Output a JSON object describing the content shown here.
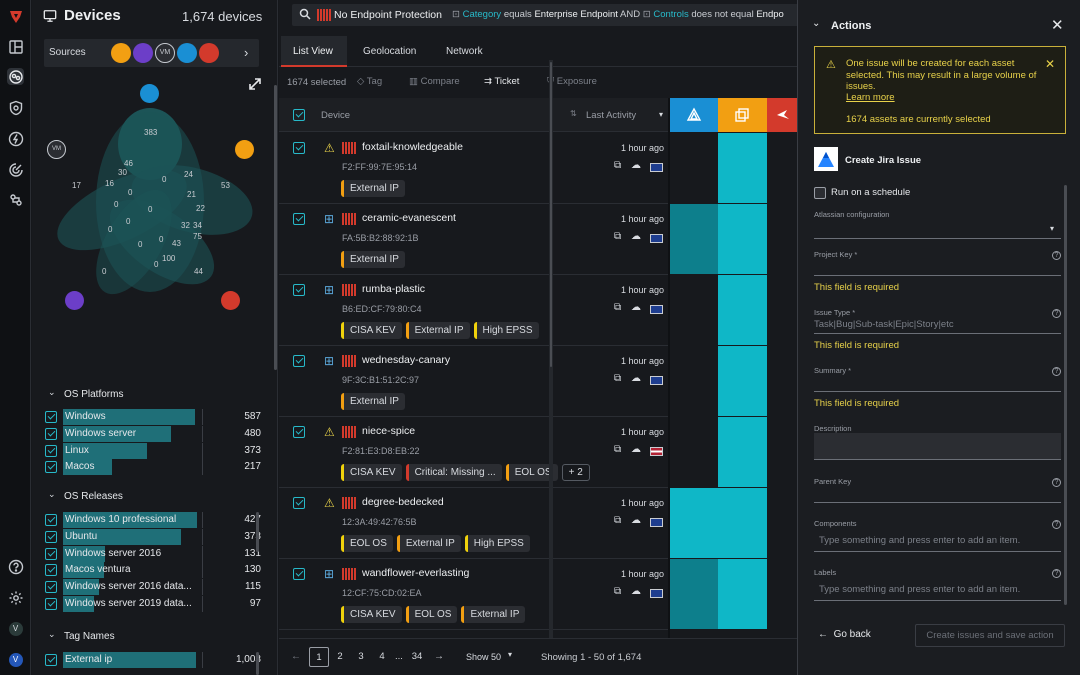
{
  "header": {
    "title": "Devices",
    "device_count": "1,674 devices"
  },
  "search": {
    "query_part1": "No Endpoint Protection",
    "field1": "Category",
    "op1": "equals",
    "val1": "Enterprise Endpoint",
    "and": "AND",
    "field2": "Controls",
    "op2": "does not equal",
    "val2": "Endpo"
  },
  "sources": {
    "label": "Sources"
  },
  "venn": {
    "labels": [
      "383",
      "46",
      "30",
      "24",
      "17",
      "16",
      "53",
      "21",
      "22",
      "32",
      "34",
      "75",
      "43",
      "100",
      "44",
      "0",
      "0",
      "0",
      "0",
      "0",
      "0",
      "0",
      "0",
      "0",
      "0"
    ]
  },
  "os_platforms": {
    "title": "OS Platforms",
    "items": [
      {
        "label": "Windows",
        "count": "587",
        "frac": 0.94
      },
      {
        "label": "Windows server",
        "count": "480",
        "frac": 0.77
      },
      {
        "label": "Linux",
        "count": "373",
        "frac": 0.6
      },
      {
        "label": "Macos",
        "count": "217",
        "frac": 0.35
      }
    ]
  },
  "os_releases": {
    "title": "OS Releases",
    "items": [
      {
        "label": "Windows 10 professional",
        "count": "427",
        "frac": 0.96
      },
      {
        "label": "Ubuntu",
        "count": "373",
        "frac": 0.84
      },
      {
        "label": "Windows server 2016",
        "count": "131",
        "frac": 0.3
      },
      {
        "label": "Macos ventura",
        "count": "130",
        "frac": 0.29
      },
      {
        "label": "Windows server 2016 data...",
        "count": "115",
        "frac": 0.26
      },
      {
        "label": "Windows server 2019 data...",
        "count": "97",
        "frac": 0.22
      }
    ]
  },
  "tag_names": {
    "title": "Tag Names",
    "items": [
      {
        "label": "External ip",
        "count": "1,003",
        "frac": 0.95
      }
    ]
  },
  "tabs": [
    "List View",
    "Geolocation",
    "Network"
  ],
  "toolbar": {
    "selected": "1674 selected",
    "tag": "Tag",
    "compare": "Compare",
    "ticket": "Ticket",
    "exposure": "Exposure"
  },
  "table": {
    "col_device": "Device",
    "col_activity": "Last Activity"
  },
  "devices": [
    {
      "name": "foxtail-knowledgeable",
      "mac": "F2:FF:99:7E:95:14",
      "activity": "1 hour ago",
      "os": "linux",
      "flag": "uk",
      "tags": [
        {
          "t": "External IP",
          "c": "o"
        }
      ],
      "cells": [
        0,
        1
      ]
    },
    {
      "name": "ceramic-evanescent",
      "mac": "FA:5B:B2:88:92:1B",
      "activity": "1 hour ago",
      "os": "windows",
      "flag": "uk",
      "tags": [
        {
          "t": "External IP",
          "c": "o"
        }
      ],
      "cells": [
        2,
        1
      ]
    },
    {
      "name": "rumba-plastic",
      "mac": "B6:ED:CF:79:80:C4",
      "activity": "1 hour ago",
      "os": "windows",
      "flag": "uk",
      "tags": [
        {
          "t": "CISA KEV",
          "c": "y"
        },
        {
          "t": "External IP",
          "c": "o"
        },
        {
          "t": "High EPSS",
          "c": "y"
        }
      ],
      "cells": [
        0,
        1
      ]
    },
    {
      "name": "wednesday-canary",
      "mac": "9F:3C:B1:51:2C:97",
      "activity": "1 hour ago",
      "os": "windows",
      "flag": "uk",
      "tags": [
        {
          "t": "External IP",
          "c": "o"
        }
      ],
      "cells": [
        0,
        1
      ]
    },
    {
      "name": "niece-spice",
      "mac": "F2:81:E3:D8:EB:22",
      "activity": "1 hour ago",
      "os": "linux",
      "flag": "us",
      "tags": [
        {
          "t": "CISA KEV",
          "c": "y"
        },
        {
          "t": "Critical: Missing ...",
          "c": "r"
        },
        {
          "t": "EOL OS",
          "c": "o"
        },
        {
          "t": "+ 2",
          "c": "plain"
        }
      ],
      "cells": [
        0,
        1
      ]
    },
    {
      "name": "degree-bedecked",
      "mac": "12:3A:49:42:76:5B",
      "activity": "1 hour ago",
      "os": "linux",
      "flag": "uk",
      "tags": [
        {
          "t": "EOL OS",
          "c": "y"
        },
        {
          "t": "External IP",
          "c": "o"
        },
        {
          "t": "High EPSS",
          "c": "y"
        }
      ],
      "cells": [
        1,
        1
      ]
    },
    {
      "name": "wandflower-everlasting",
      "mac": "12:CF:75:CD:02:EA",
      "activity": "1 hour ago",
      "os": "windows",
      "flag": "uk",
      "tags": [
        {
          "t": "CISA KEV",
          "c": "y"
        },
        {
          "t": "EOL OS",
          "c": "o"
        },
        {
          "t": "External IP",
          "c": "o"
        }
      ],
      "cells": [
        2,
        1
      ]
    }
  ],
  "pagination": {
    "pages": [
      "1",
      "2",
      "3",
      "4",
      "...",
      "34"
    ],
    "show": "Show 50",
    "showing": "Showing 1 - 50 of 1,674"
  },
  "panel": {
    "title": "Actions",
    "alert_text": "One issue will be created for each asset selected. This may result in a large volume of issues.",
    "learn_more": "Learn more",
    "assets_selected": "1674 assets are currently selected",
    "jira_title": "Create Jira Issue",
    "schedule": "Run on a schedule",
    "atlassian": "Atlassian configuration",
    "project_key": "Project Key *",
    "required": "This field is required",
    "issue_type": "Issue Type *",
    "issue_type_placeholder": "Task|Bug|Sub-task|Epic|Story|etc",
    "summary": "Summary *",
    "description": "Description",
    "parent_key": "Parent Key",
    "components": "Components",
    "components_placeholder": "Type something and press enter to add an item.",
    "labels": "Labels",
    "labels_placeholder": "Type something and press enter to add an item.",
    "back": "Go back",
    "create": "Create issues and save action"
  },
  "colors": {
    "accent": "#27b9c9",
    "warning": "#e8d24a",
    "danger": "#d33a2c",
    "orange": "#f29f12"
  }
}
